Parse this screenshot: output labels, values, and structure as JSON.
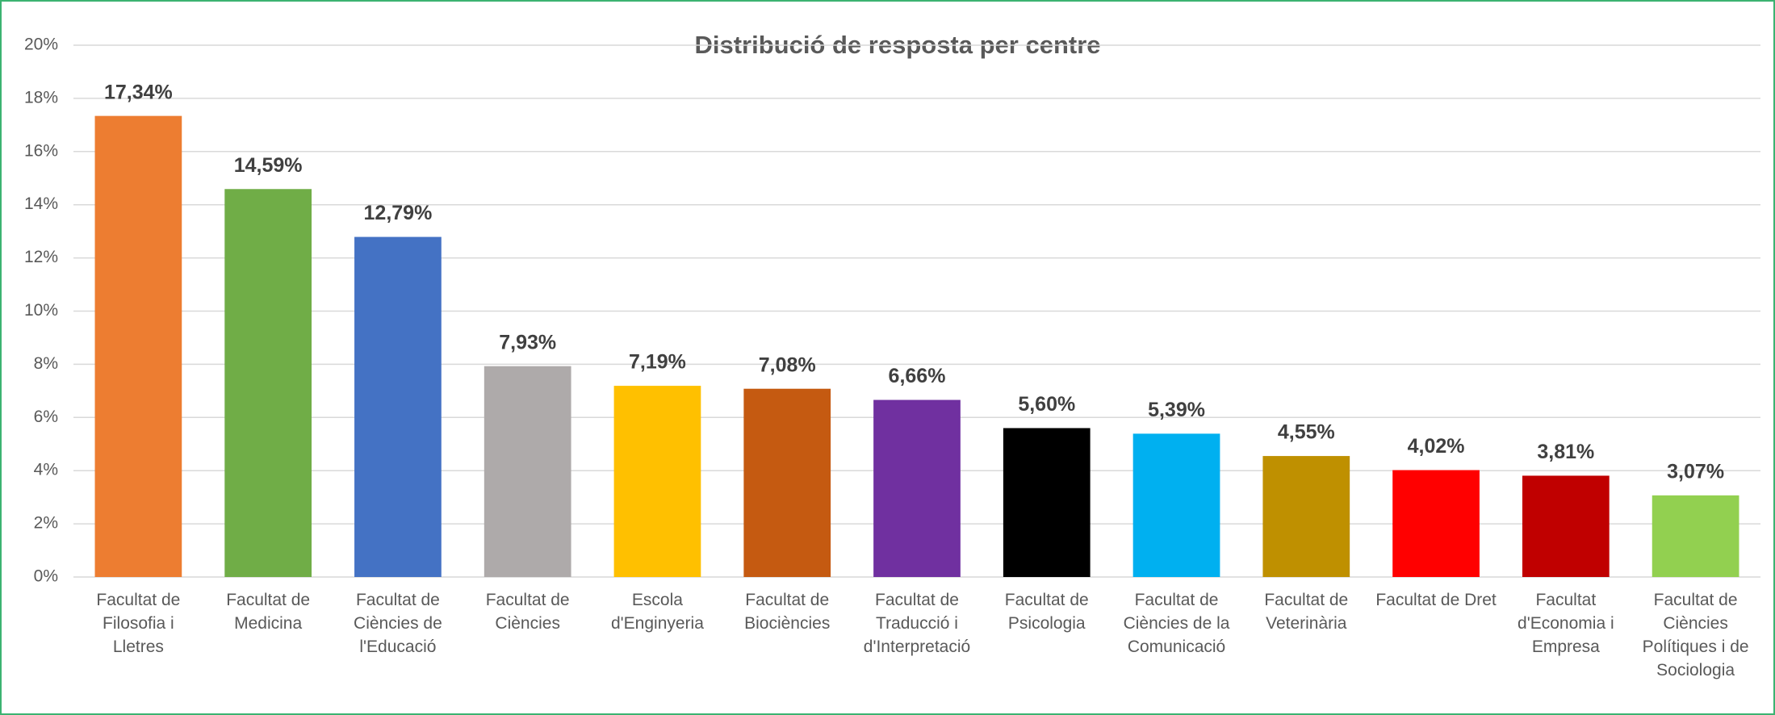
{
  "chart_data": {
    "type": "bar",
    "title": "Distribució de resposta per centre",
    "categories": [
      "Facultat de Filosofia i Lletres",
      "Facultat de Medicina",
      "Facultat de Ciències de l'Educació",
      "Facultat de Ciències",
      "Escola d'Enginyeria",
      "Facultat de Biociències",
      "Facultat de Traducció i d'Interpretació",
      "Facultat de Psicologia",
      "Facultat de Ciències de la Comunicació",
      "Facultat de Veterinària",
      "Facultat de Dret",
      "Facultat d'Economia i Empresa",
      "Facultat de Ciències Polítiques i de Sociologia"
    ],
    "values": [
      17.34,
      14.59,
      12.79,
      7.93,
      7.19,
      7.08,
      6.66,
      5.6,
      5.39,
      4.55,
      4.02,
      3.81,
      3.07
    ],
    "value_labels": [
      "17,34%",
      "14,59%",
      "12,79%",
      "7,93%",
      "7,19%",
      "7,08%",
      "6,66%",
      "5,60%",
      "5,39%",
      "4,55%",
      "4,02%",
      "3,81%",
      "3,07%"
    ],
    "colors": [
      "#ed7d31",
      "#70ad47",
      "#4472c4",
      "#aeaaaa",
      "#ffc000",
      "#c55a11",
      "#7030a0",
      "#000000",
      "#00b0f0",
      "#bf9000",
      "#ff0000",
      "#c00000",
      "#92d050"
    ],
    "ylim": [
      0,
      20
    ],
    "yticks": [
      {
        "value": 0,
        "label": "0%"
      },
      {
        "value": 2,
        "label": "2%"
      },
      {
        "value": 4,
        "label": "4%"
      },
      {
        "value": 6,
        "label": "6%"
      },
      {
        "value": 8,
        "label": "8%"
      },
      {
        "value": 10,
        "label": "10%"
      },
      {
        "value": 12,
        "label": "12%"
      },
      {
        "value": 14,
        "label": "14%"
      },
      {
        "value": 16,
        "label": "16%"
      },
      {
        "value": 18,
        "label": "18%"
      },
      {
        "value": 20,
        "label": "20%"
      }
    ],
    "grid": true
  }
}
